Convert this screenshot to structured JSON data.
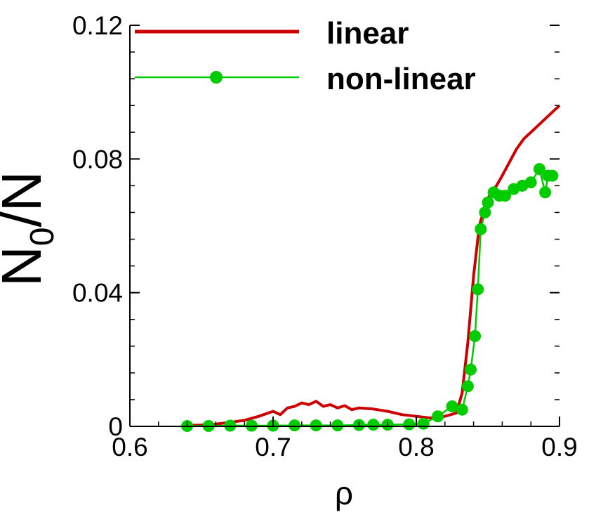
{
  "chart_data": {
    "type": "line",
    "xlabel": "ρ",
    "ylabel_main": "N",
    "ylabel_sub": "0",
    "ylabel_tail": "/N",
    "xlim": [
      0.6,
      0.9
    ],
    "ylim": [
      0,
      0.12
    ],
    "x_ticks": [
      0.6,
      0.7,
      0.8,
      0.9
    ],
    "x_tick_labels": [
      "0.6",
      "0.7",
      "0.8",
      "0.9"
    ],
    "y_ticks": [
      0,
      0.04,
      0.08,
      0.12
    ],
    "y_tick_labels": [
      "0",
      "0.04",
      "0.08",
      "0.12"
    ],
    "legend_position": "top-left",
    "series": [
      {
        "name": "linear",
        "color": "#cc0000",
        "marker": "none",
        "x": [
          0.64,
          0.65,
          0.66,
          0.67,
          0.68,
          0.69,
          0.7,
          0.705,
          0.71,
          0.715,
          0.72,
          0.725,
          0.73,
          0.735,
          0.74,
          0.745,
          0.75,
          0.755,
          0.76,
          0.77,
          0.78,
          0.79,
          0.8,
          0.81,
          0.82,
          0.828,
          0.832,
          0.836,
          0.84,
          0.844,
          0.848,
          0.852,
          0.856,
          0.86,
          0.865,
          0.87,
          0.875,
          0.88,
          0.885,
          0.89,
          0.895,
          0.9
        ],
        "y": [
          0.0003,
          0.0004,
          0.0007,
          0.0012,
          0.0018,
          0.003,
          0.0045,
          0.0035,
          0.0055,
          0.006,
          0.007,
          0.0065,
          0.0075,
          0.006,
          0.0065,
          0.0055,
          0.0062,
          0.005,
          0.0055,
          0.0052,
          0.0045,
          0.0035,
          0.003,
          0.0025,
          0.003,
          0.004,
          0.01,
          0.025,
          0.045,
          0.06,
          0.066,
          0.07,
          0.072,
          0.075,
          0.079,
          0.083,
          0.086,
          0.088,
          0.09,
          0.092,
          0.094,
          0.096
        ]
      },
      {
        "name": "non-linear",
        "color": "#00cc00",
        "marker": "circle",
        "x": [
          0.64,
          0.655,
          0.67,
          0.685,
          0.7,
          0.715,
          0.73,
          0.745,
          0.76,
          0.77,
          0.78,
          0.795,
          0.805,
          0.815,
          0.825,
          0.832,
          0.836,
          0.838,
          0.841,
          0.843,
          0.845,
          0.848,
          0.85,
          0.854,
          0.858,
          0.862,
          0.868,
          0.874,
          0.88,
          0.886,
          0.89,
          0.892,
          0.895
        ],
        "y": [
          0.0001,
          0.0001,
          0.0002,
          0.0002,
          0.0002,
          0.0003,
          0.0003,
          0.0003,
          0.0004,
          0.0005,
          0.0005,
          0.0006,
          0.0008,
          0.003,
          0.006,
          0.005,
          0.012,
          0.017,
          0.027,
          0.041,
          0.059,
          0.064,
          0.067,
          0.07,
          0.069,
          0.069,
          0.071,
          0.072,
          0.073,
          0.077,
          0.07,
          0.075,
          0.075
        ]
      }
    ]
  }
}
